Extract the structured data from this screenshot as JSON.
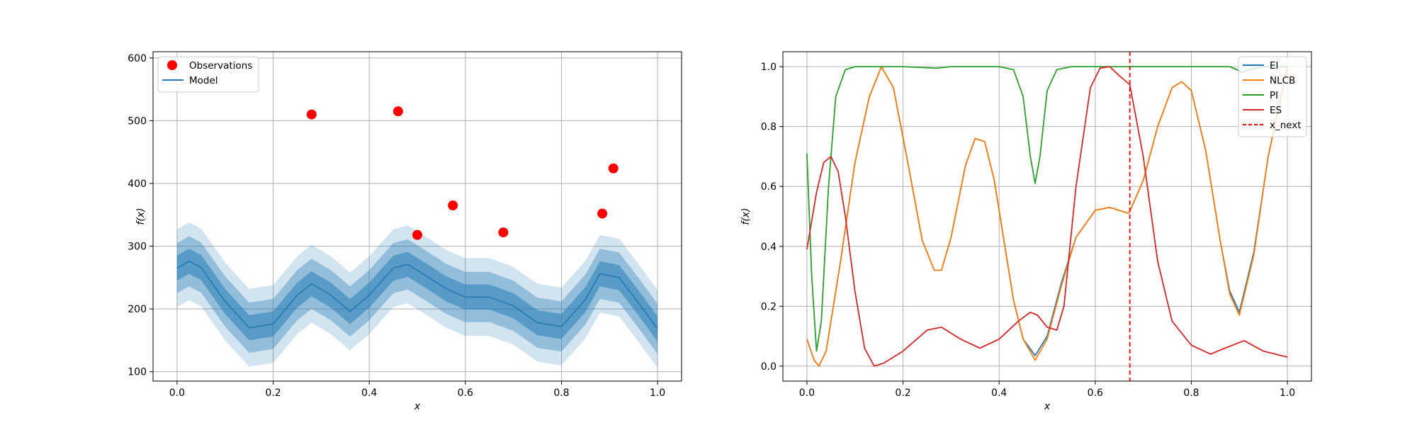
{
  "chart_data": [
    {
      "type": "line",
      "xlabel": "x",
      "ylabel": "f(x)",
      "xlim": [
        -0.05,
        1.05
      ],
      "ylim": [
        85,
        610
      ],
      "xticks": [
        0.0,
        0.2,
        0.4,
        0.6,
        0.8,
        1.0
      ],
      "xtick_labels": [
        "0.0",
        "0.2",
        "0.4",
        "0.6",
        "0.8",
        "1.0"
      ],
      "yticks": [
        100,
        200,
        300,
        400,
        500,
        600
      ],
      "ytick_labels": [
        "100",
        "200",
        "300",
        "400",
        "500",
        "600"
      ],
      "grid": true,
      "legend_position": "top-left",
      "legend": [
        {
          "label": "Observations",
          "color": "#ff0000",
          "marker": "circle"
        },
        {
          "label": "Model",
          "color": "#1f77b4",
          "marker": "line"
        }
      ],
      "observations": {
        "x": [
          0.28,
          0.46,
          0.5,
          0.574,
          0.679,
          0.885,
          0.908
        ],
        "y": [
          510,
          515,
          318,
          365,
          322,
          352,
          424
        ]
      },
      "model": {
        "name": "Model",
        "color": "#1f77b4",
        "x": [
          0.0,
          0.025,
          0.05,
          0.1,
          0.15,
          0.2,
          0.25,
          0.28,
          0.32,
          0.36,
          0.4,
          0.45,
          0.48,
          0.52,
          0.56,
          0.6,
          0.65,
          0.7,
          0.75,
          0.8,
          0.85,
          0.88,
          0.92,
          0.96,
          1.0
        ],
        "mean": [
          265,
          276,
          266,
          212,
          170,
          176,
          222,
          240,
          222,
          196,
          222,
          265,
          271,
          252,
          232,
          219,
          219,
          205,
          178,
          172,
          215,
          256,
          250,
          210,
          168
        ],
        "band_halfwidths": [
          20,
          40,
          62
        ],
        "band_colors": [
          "#1f77b4",
          "#1f77b4",
          "#1f77b4"
        ],
        "band_opacities": [
          0.5,
          0.35,
          0.2
        ]
      }
    },
    {
      "type": "line",
      "xlabel": "x",
      "ylabel": "f(x)",
      "xlim": [
        -0.05,
        1.05
      ],
      "ylim": [
        -0.05,
        1.05
      ],
      "xticks": [
        0.0,
        0.2,
        0.4,
        0.6,
        0.8,
        1.0
      ],
      "xtick_labels": [
        "0.0",
        "0.2",
        "0.4",
        "0.6",
        "0.8",
        "1.0"
      ],
      "yticks": [
        0.0,
        0.2,
        0.4,
        0.6,
        0.8,
        1.0
      ],
      "ytick_labels": [
        "0.0",
        "0.2",
        "0.4",
        "0.6",
        "0.8",
        "1.0"
      ],
      "grid": true,
      "legend_position": "top-right",
      "legend": [
        {
          "label": "EI",
          "color": "#1f77b4",
          "style": "solid"
        },
        {
          "label": "NLCB",
          "color": "#ff7f0e",
          "style": "solid"
        },
        {
          "label": "PI",
          "color": "#2ca02c",
          "style": "solid"
        },
        {
          "label": "ES",
          "color": "#d62728",
          "style": "solid"
        },
        {
          "label": "x_next",
          "color": "#ff0000",
          "style": "dashed"
        }
      ],
      "series": [
        {
          "name": "EI",
          "color": "#1f77b4",
          "x": [
            0.0,
            0.015,
            0.025,
            0.04,
            0.07,
            0.1,
            0.13,
            0.155,
            0.18,
            0.21,
            0.24,
            0.265,
            0.28,
            0.3,
            0.33,
            0.35,
            0.37,
            0.39,
            0.41,
            0.43,
            0.45,
            0.475,
            0.5,
            0.53,
            0.56,
            0.6,
            0.63,
            0.65,
            0.67,
            0.7,
            0.73,
            0.76,
            0.78,
            0.8,
            0.83,
            0.86,
            0.88,
            0.9,
            0.93,
            0.96,
            1.0
          ],
          "y": [
            0.09,
            0.02,
            0.0,
            0.05,
            0.35,
            0.68,
            0.9,
            1.0,
            0.93,
            0.68,
            0.42,
            0.32,
            0.32,
            0.43,
            0.67,
            0.76,
            0.75,
            0.62,
            0.42,
            0.22,
            0.09,
            0.035,
            0.1,
            0.28,
            0.43,
            0.52,
            0.53,
            0.52,
            0.51,
            0.62,
            0.8,
            0.93,
            0.95,
            0.92,
            0.72,
            0.42,
            0.25,
            0.18,
            0.38,
            0.7,
            1.0
          ]
        },
        {
          "name": "NLCB",
          "color": "#ff7f0e",
          "x": [
            0.0,
            0.015,
            0.025,
            0.04,
            0.07,
            0.1,
            0.13,
            0.155,
            0.18,
            0.21,
            0.24,
            0.265,
            0.28,
            0.3,
            0.33,
            0.35,
            0.37,
            0.39,
            0.41,
            0.43,
            0.45,
            0.475,
            0.5,
            0.53,
            0.56,
            0.6,
            0.63,
            0.65,
            0.67,
            0.7,
            0.73,
            0.76,
            0.78,
            0.8,
            0.83,
            0.86,
            0.88,
            0.9,
            0.93,
            0.96,
            1.0
          ],
          "y": [
            0.09,
            0.02,
            0.0,
            0.05,
            0.35,
            0.68,
            0.9,
            1.0,
            0.93,
            0.68,
            0.42,
            0.32,
            0.32,
            0.43,
            0.67,
            0.76,
            0.75,
            0.62,
            0.42,
            0.22,
            0.09,
            0.02,
            0.09,
            0.27,
            0.43,
            0.52,
            0.53,
            0.52,
            0.51,
            0.62,
            0.8,
            0.93,
            0.95,
            0.92,
            0.72,
            0.42,
            0.24,
            0.17,
            0.37,
            0.7,
            1.0
          ]
        },
        {
          "name": "PI",
          "color": "#2ca02c",
          "x": [
            0.0,
            0.01,
            0.02,
            0.03,
            0.045,
            0.06,
            0.08,
            0.1,
            0.2,
            0.27,
            0.3,
            0.4,
            0.43,
            0.45,
            0.465,
            0.475,
            0.485,
            0.5,
            0.52,
            0.55,
            0.6,
            0.7,
            0.8,
            0.88,
            0.895,
            0.905,
            0.92,
            0.95,
            1.0
          ],
          "y": [
            0.71,
            0.3,
            0.05,
            0.15,
            0.6,
            0.9,
            0.99,
            1.0,
            1.0,
            0.995,
            1.0,
            1.0,
            0.99,
            0.9,
            0.7,
            0.61,
            0.7,
            0.92,
            0.99,
            1.0,
            1.0,
            1.0,
            1.0,
            1.0,
            0.99,
            0.98,
            0.99,
            1.0,
            1.0
          ]
        },
        {
          "name": "ES",
          "color": "#d62728",
          "x": [
            0.0,
            0.02,
            0.035,
            0.05,
            0.065,
            0.08,
            0.1,
            0.12,
            0.14,
            0.16,
            0.2,
            0.25,
            0.28,
            0.32,
            0.36,
            0.4,
            0.44,
            0.465,
            0.48,
            0.5,
            0.52,
            0.535,
            0.56,
            0.59,
            0.61,
            0.63,
            0.65,
            0.672,
            0.7,
            0.73,
            0.76,
            0.8,
            0.84,
            0.87,
            0.91,
            0.95,
            1.0
          ],
          "y": [
            0.39,
            0.58,
            0.68,
            0.7,
            0.65,
            0.5,
            0.25,
            0.06,
            0.0,
            0.01,
            0.05,
            0.12,
            0.13,
            0.09,
            0.06,
            0.09,
            0.15,
            0.18,
            0.17,
            0.13,
            0.12,
            0.2,
            0.6,
            0.93,
            0.995,
            1.0,
            0.97,
            0.94,
            0.7,
            0.35,
            0.15,
            0.07,
            0.04,
            0.06,
            0.085,
            0.05,
            0.03
          ]
        }
      ],
      "vline": {
        "name": "x_next",
        "x": 0.672,
        "color": "#ff0000",
        "style": "dashed"
      }
    }
  ]
}
